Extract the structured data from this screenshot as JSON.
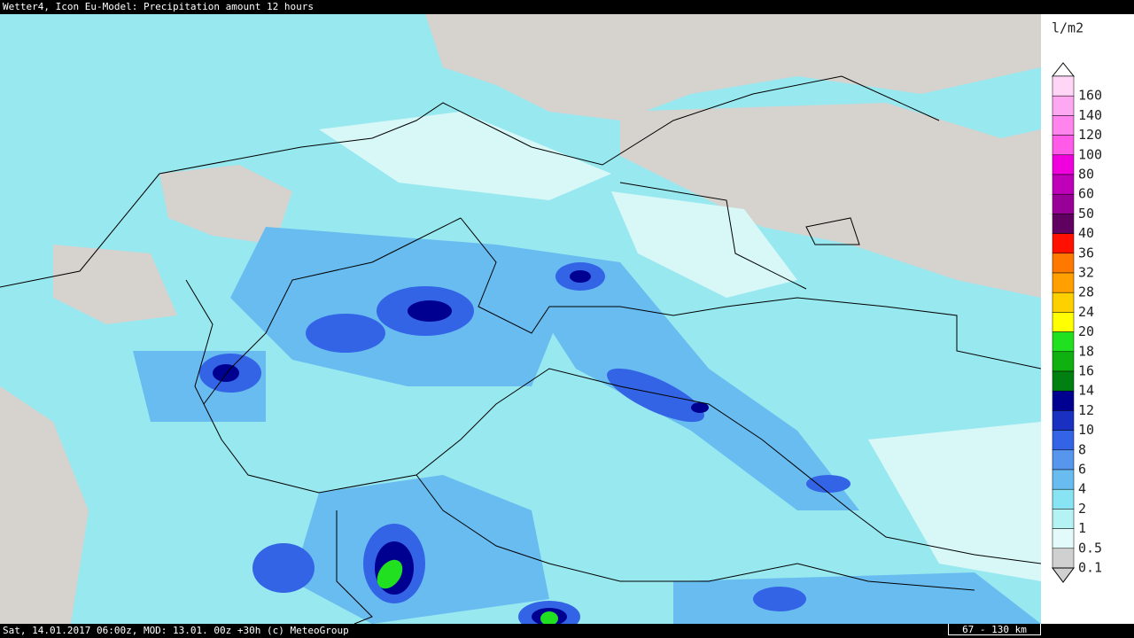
{
  "header": {
    "title": "Wetter4, Icon Eu-Model: Precipitation amount 12 hours"
  },
  "footer": {
    "info": "Sat, 14.01.2017 06:00z, MOD: 13.01. 00z +30h (c) MeteoGroup",
    "scale": "67 - 130 km"
  },
  "legend": {
    "unit": "l/m2",
    "items": [
      {
        "label": 160,
        "color": "#ffd6f6"
      },
      {
        "label": 140,
        "color": "#ffa8f2"
      },
      {
        "label": 120,
        "color": "#ff84ee"
      },
      {
        "label": 100,
        "color": "#ff5ae8"
      },
      {
        "label": 80,
        "color": "#f000dc"
      },
      {
        "label": 60,
        "color": "#c000b8"
      },
      {
        "label": 50,
        "color": "#980098"
      },
      {
        "label": 40,
        "color": "#600060"
      },
      {
        "label": 36,
        "color": "#ff1000"
      },
      {
        "label": 32,
        "color": "#ff7800"
      },
      {
        "label": 28,
        "color": "#ffa000"
      },
      {
        "label": 24,
        "color": "#ffd000"
      },
      {
        "label": 20,
        "color": "#ffff00"
      },
      {
        "label": 18,
        "color": "#20e020"
      },
      {
        "label": 16,
        "color": "#10b010"
      },
      {
        "label": 14,
        "color": "#008010"
      },
      {
        "label": 12,
        "color": "#000090"
      },
      {
        "label": 10,
        "color": "#1a30c0"
      },
      {
        "label": 8,
        "color": "#3464e6"
      },
      {
        "label": 6,
        "color": "#5696ec"
      },
      {
        "label": 4,
        "color": "#68bcf0"
      },
      {
        "label": 2,
        "color": "#88e4f2"
      },
      {
        "label": 1,
        "color": "#b4f2f4"
      },
      {
        "label": 0.5,
        "color": "#e2fafa"
      },
      {
        "label": 0.1,
        "color": "#d0d0d0"
      }
    ]
  }
}
